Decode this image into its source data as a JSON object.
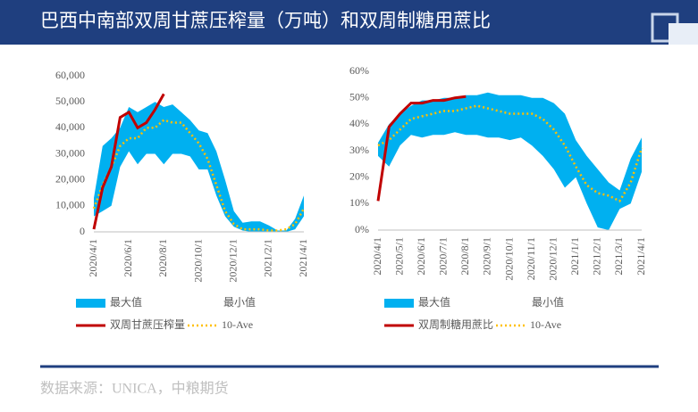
{
  "header": {
    "title": "巴西中南部双周甘蔗压榨量（万吨）和双周制糖用蔗比"
  },
  "footer": {
    "source": "数据来源：UNICA，中粮期货"
  },
  "chart_data": [
    {
      "type": "line",
      "categories": [
        "2020/4/1",
        null,
        null,
        null,
        "2020/6/1",
        null,
        null,
        null,
        "2020/8/1",
        null,
        null,
        null,
        "2020/10/1",
        null,
        null,
        null,
        "2020/12/1",
        null,
        null,
        null,
        "2021/2/1",
        null,
        null,
        null,
        "2021/4/1"
      ],
      "ylim": [
        0,
        60000
      ],
      "yticks": [
        {
          "value": 0,
          "label": "0"
        },
        {
          "value": 10000,
          "label": "10,000"
        },
        {
          "value": 20000,
          "label": "20,000"
        },
        {
          "value": 30000,
          "label": "30,000"
        },
        {
          "value": 40000,
          "label": "40,000"
        },
        {
          "value": 50000,
          "label": "50,000"
        },
        {
          "value": 60000,
          "label": "60,000"
        }
      ],
      "series": [
        {
          "name": "最大值",
          "style": "area",
          "color": "#00b0f0",
          "values": [
            13000,
            33000,
            36000,
            40000,
            48000,
            46000,
            48000,
            50000,
            48000,
            49000,
            46000,
            43000,
            39000,
            38000,
            31000,
            20000,
            8000,
            3500,
            4000,
            4000,
            2500,
            500,
            500,
            5000,
            14000
          ]
        },
        {
          "name": "最小值",
          "style": "area",
          "color": "#ffffff",
          "values": [
            6000,
            8000,
            10000,
            25000,
            31000,
            26000,
            30000,
            30000,
            26000,
            30000,
            30000,
            29000,
            24000,
            24000,
            14000,
            6000,
            2000,
            500,
            0,
            0,
            0,
            0,
            0,
            1000,
            6000
          ]
        },
        {
          "name": "双周甘蔗压榨量",
          "style": "line",
          "color": "#c00000",
          "values": [
            1000,
            17000,
            25000,
            44000,
            46000,
            40000,
            42000,
            47000,
            53000,
            null,
            null,
            null,
            null,
            null,
            null,
            null,
            null,
            null,
            null,
            null,
            null,
            null,
            null,
            null,
            null
          ]
        },
        {
          "name": "10-Ave",
          "style": "dotted",
          "color": "#ffc000",
          "values": [
            9000,
            18000,
            25000,
            33000,
            36000,
            36000,
            40000,
            40000,
            43000,
            42000,
            42000,
            38000,
            34000,
            28000,
            18000,
            8000,
            3000,
            1000,
            1000,
            1000,
            500,
            500,
            1000,
            3000,
            9000
          ]
        }
      ]
    },
    {
      "type": "line",
      "categories": [
        "2020/4/1",
        null,
        "2020/5/1",
        null,
        "2020/6/1",
        null,
        "2020/7/1",
        null,
        "2020/8/1",
        null,
        "2020/9/1",
        null,
        "2020/10/1",
        null,
        "2020/11/1",
        null,
        "2020/12/1",
        null,
        "2021/1/1",
        null,
        "2021/2/1",
        null,
        "2021/3/1",
        null,
        "2021/4/1"
      ],
      "ylim": [
        0,
        60
      ],
      "yticks": [
        {
          "value": 0,
          "label": "0%"
        },
        {
          "value": 10,
          "label": "10%"
        },
        {
          "value": 20,
          "label": "20%"
        },
        {
          "value": 30,
          "label": "30%"
        },
        {
          "value": 40,
          "label": "40%"
        },
        {
          "value": 50,
          "label": "50%"
        },
        {
          "value": 60,
          "label": "60%"
        }
      ],
      "series": [
        {
          "name": "最大值",
          "style": "area",
          "color": "#00b0f0",
          "values": [
            33,
            40,
            44,
            47,
            49,
            49,
            50,
            50,
            51,
            51,
            52,
            51,
            51,
            51,
            50,
            50,
            48,
            44,
            34,
            28,
            23,
            18,
            15,
            27,
            35
          ]
        },
        {
          "name": "最小值",
          "style": "area",
          "color": "#ffffff",
          "values": [
            28,
            24,
            32,
            36,
            35,
            36,
            36,
            37,
            36,
            36,
            35,
            35,
            34,
            35,
            32,
            28,
            23,
            16,
            20,
            10,
            1,
            0,
            8,
            10,
            22
          ]
        },
        {
          "name": "双周制糖用蔗比",
          "style": "line",
          "color": "#c00000",
          "values": [
            11,
            39,
            44,
            48,
            48,
            49,
            49,
            50,
            50.5,
            null,
            null,
            null,
            null,
            null,
            null,
            null,
            null,
            null,
            null,
            null,
            null,
            null,
            null,
            null,
            null
          ]
        },
        {
          "name": "10-Ave",
          "style": "dotted",
          "color": "#ffc000",
          "values": [
            32,
            34,
            38,
            42,
            43,
            44,
            45,
            45,
            46,
            47,
            46,
            45,
            44,
            44,
            44,
            42,
            38,
            32,
            24,
            17,
            14,
            13,
            11,
            18,
            31
          ]
        }
      ]
    }
  ]
}
